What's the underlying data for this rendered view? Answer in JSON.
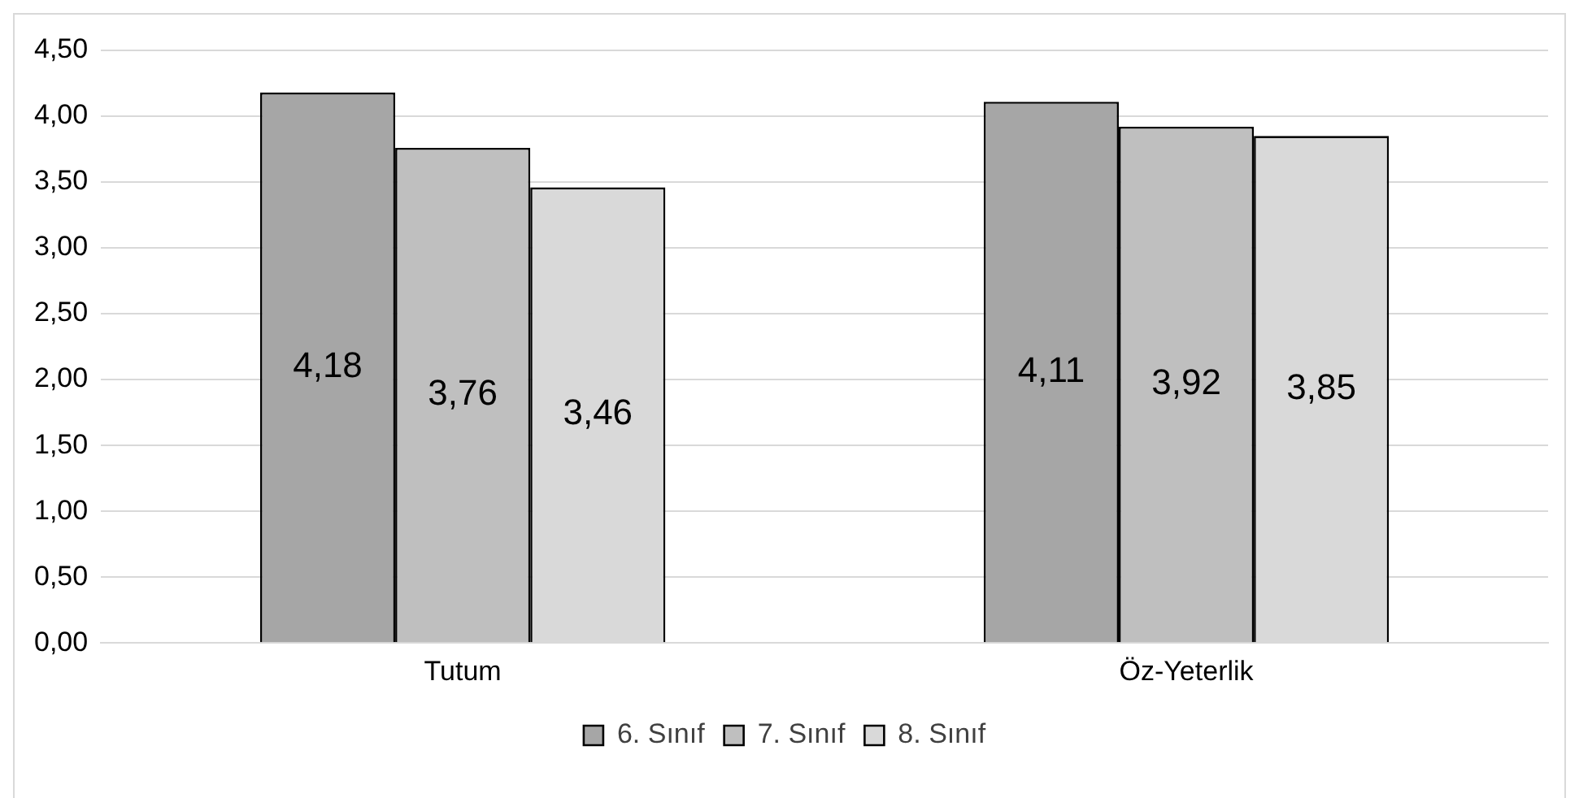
{
  "chart_data": {
    "type": "bar",
    "categories": [
      "Tutum",
      "Öz-Yeterlik"
    ],
    "series": [
      {
        "name": "6. Sınıf",
        "color": "#a6a6a6",
        "values": [
          4.18,
          4.11
        ],
        "value_labels": [
          "4,18",
          "4,11"
        ]
      },
      {
        "name": "7. Sınıf",
        "color": "#bfbfbf",
        "values": [
          3.76,
          3.92
        ],
        "value_labels": [
          "3,76",
          "3,92"
        ]
      },
      {
        "name": "8. Sınıf",
        "color": "#d9d9d9",
        "values": [
          3.46,
          3.85
        ],
        "value_labels": [
          "3,46",
          "3,85"
        ]
      }
    ],
    "ylim": [
      0,
      4.5
    ],
    "yticks": [
      {
        "value": 0,
        "label": "0,00"
      },
      {
        "value": 0.5,
        "label": "0,50"
      },
      {
        "value": 1,
        "label": "1,00"
      },
      {
        "value": 1.5,
        "label": "1,50"
      },
      {
        "value": 2,
        "label": "2,00"
      },
      {
        "value": 2.5,
        "label": "2,50"
      },
      {
        "value": 3,
        "label": "3,00"
      },
      {
        "value": 3.5,
        "label": "3,50"
      },
      {
        "value": 4,
        "label": "4,00"
      },
      {
        "value": 4.5,
        "label": "4,50"
      }
    ],
    "grid": "y",
    "legend": "bottom"
  }
}
